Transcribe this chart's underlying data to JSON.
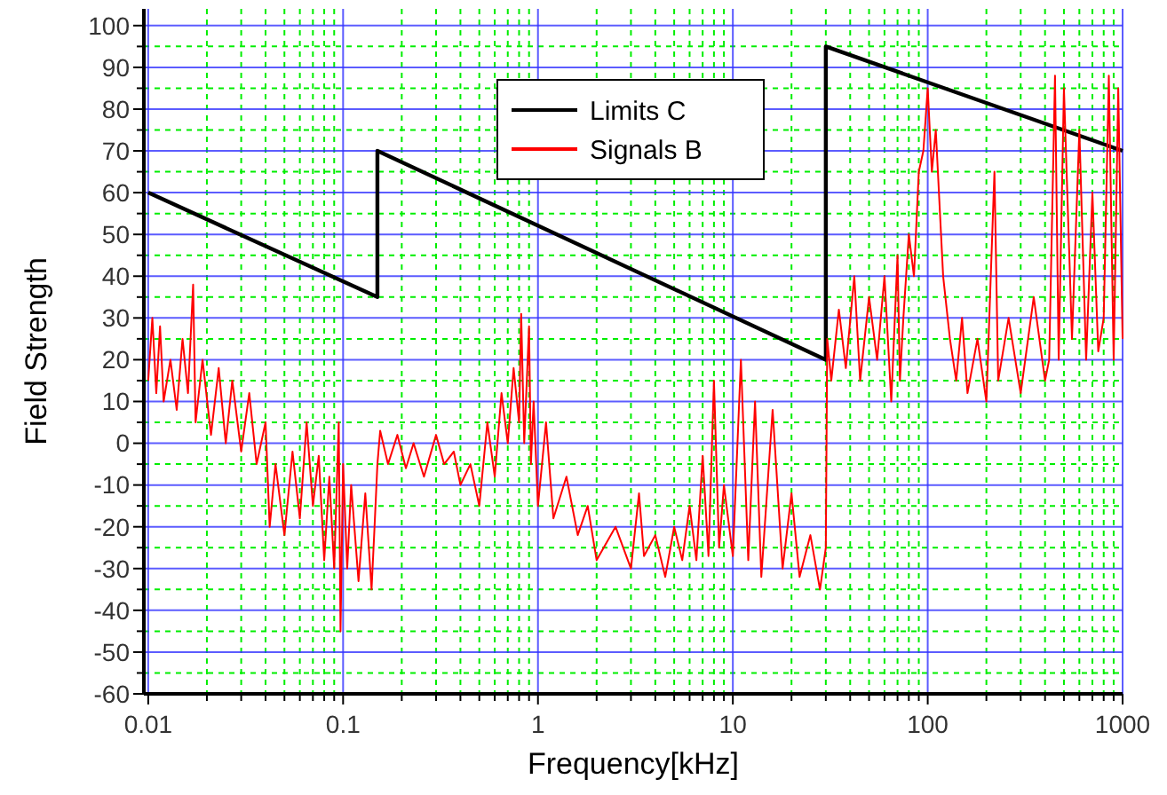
{
  "chart_data": {
    "type": "line",
    "xlabel": "Frequency[kHz]",
    "ylabel": "Field Strength",
    "log": "x",
    "xlim": [
      0.0095,
      1000
    ],
    "xticks": [
      0.01,
      {
        "value": 0.02,
        "label": null
      },
      {
        "value": 0.03,
        "label": null
      },
      {
        "value": 0.04,
        "label": null
      },
      {
        "value": 0.05,
        "label": null
      },
      {
        "value": 0.06,
        "label": null
      },
      {
        "value": 0.07,
        "label": null
      },
      {
        "value": 0.08,
        "label": null
      },
      {
        "value": 0.09,
        "label": null
      },
      0.1,
      {
        "value": 0.2,
        "label": null
      },
      {
        "value": 0.3,
        "label": null
      },
      {
        "value": 0.4,
        "label": null
      },
      {
        "value": 0.5,
        "label": null
      },
      {
        "value": 0.6,
        "label": null
      },
      {
        "value": 0.7,
        "label": null
      },
      {
        "value": 0.8,
        "label": null
      },
      {
        "value": 0.9,
        "label": null
      },
      1,
      {
        "value": 2,
        "label": null
      },
      {
        "value": 3,
        "label": null
      },
      {
        "value": 4,
        "label": null
      },
      {
        "value": 5,
        "label": null
      },
      {
        "value": 6,
        "label": null
      },
      {
        "value": 7,
        "label": null
      },
      {
        "value": 8,
        "label": null
      },
      {
        "value": 9,
        "label": null
      },
      10,
      {
        "value": 20,
        "label": null
      },
      {
        "value": 30,
        "label": null
      },
      {
        "value": 40,
        "label": null
      },
      {
        "value": 50,
        "label": null
      },
      {
        "value": 60,
        "label": null
      },
      {
        "value": 70,
        "label": null
      },
      {
        "value": 80,
        "label": null
      },
      {
        "value": 90,
        "label": null
      },
      100,
      {
        "value": 200,
        "label": null
      },
      {
        "value": 300,
        "label": null
      },
      {
        "value": 400,
        "label": null
      },
      {
        "value": 500,
        "label": null
      },
      {
        "value": 600,
        "label": null
      },
      {
        "value": 700,
        "label": null
      },
      {
        "value": 800,
        "label": null
      },
      {
        "value": 900,
        "label": null
      },
      1000
    ],
    "ylim": [
      -60,
      104
    ],
    "yticks": [
      -60,
      {
        "value": -55,
        "label": null
      },
      -50,
      {
        "value": -45,
        "label": null
      },
      -40,
      {
        "value": -35,
        "label": null
      },
      -30,
      {
        "value": -25,
        "label": null
      },
      -20,
      {
        "value": -15,
        "label": null
      },
      -10,
      {
        "value": -5,
        "label": null
      },
      0,
      {
        "value": 5,
        "label": null
      },
      10,
      {
        "value": 15,
        "label": null
      },
      20,
      {
        "value": 25,
        "label": null
      },
      30,
      {
        "value": 35,
        "label": null
      },
      40,
      {
        "value": 45,
        "label": null
      },
      50,
      {
        "value": 55,
        "label": null
      },
      60,
      {
        "value": 65,
        "label": null
      },
      70,
      {
        "value": 75,
        "label": null
      },
      80,
      {
        "value": 85,
        "label": null
      },
      90,
      {
        "value": 95,
        "label": null
      },
      100
    ],
    "grid": true,
    "legend": "top",
    "line_style": "solid",
    "series": [
      {
        "name": "Limits C",
        "color": "#000000",
        "x": [
          0.01,
          0.15,
          0.15,
          30,
          30,
          1000
        ],
        "values": [
          60,
          35,
          70,
          20,
          95,
          70
        ]
      },
      {
        "name": "Signals B",
        "color": "#ff0000",
        "x": [
          0.01,
          0.0105,
          0.011,
          0.0115,
          0.012,
          0.013,
          0.014,
          0.015,
          0.016,
          0.017,
          0.0175,
          0.019,
          0.021,
          0.023,
          0.025,
          0.027,
          0.03,
          0.033,
          0.036,
          0.04,
          0.042,
          0.045,
          0.05,
          0.055,
          0.06,
          0.065,
          0.07,
          0.075,
          0.08,
          0.085,
          0.09,
          0.095,
          0.097,
          0.1,
          0.105,
          0.11,
          0.12,
          0.13,
          0.14,
          0.145,
          0.15,
          0.155,
          0.17,
          0.19,
          0.21,
          0.23,
          0.26,
          0.3,
          0.33,
          0.37,
          0.4,
          0.45,
          0.5,
          0.55,
          0.6,
          0.65,
          0.7,
          0.75,
          0.8,
          0.82,
          0.85,
          0.9,
          0.92,
          0.95,
          1,
          1.1,
          1.2,
          1.4,
          1.6,
          1.8,
          2,
          2.5,
          3,
          3.3,
          3.5,
          4,
          4.5,
          5,
          5.5,
          6,
          6.5,
          7,
          7.5,
          8,
          8.5,
          9,
          10,
          11,
          12,
          13,
          14,
          16,
          18,
          20,
          22,
          25,
          28,
          30,
          30.5,
          32,
          35,
          38,
          42,
          45,
          50,
          55,
          60,
          65,
          70,
          72,
          75,
          80,
          85,
          90,
          95,
          100,
          105,
          110,
          120,
          130,
          140,
          150,
          160,
          180,
          200,
          220,
          230,
          260,
          300,
          350,
          400,
          420,
          450,
          470,
          500,
          550,
          600,
          650,
          700,
          750,
          800,
          850,
          900,
          950,
          1000
        ],
        "values": [
          15,
          30,
          12,
          28,
          10,
          20,
          8,
          25,
          12,
          38,
          5,
          20,
          2,
          18,
          0,
          15,
          -2,
          12,
          -5,
          5,
          -20,
          -5,
          -22,
          -2,
          -18,
          5,
          -15,
          -3,
          -28,
          -8,
          -30,
          5,
          -45,
          -5,
          -30,
          -10,
          -33,
          -12,
          -35,
          -20,
          -5,
          3,
          -5,
          2,
          -6,
          0,
          -8,
          2,
          -5,
          -2,
          -10,
          -5,
          -15,
          5,
          -8,
          12,
          0,
          18,
          5,
          31,
          0,
          28,
          -5,
          10,
          -15,
          5,
          -18,
          -8,
          -22,
          -15,
          -28,
          -20,
          -30,
          -12,
          -27,
          -22,
          -32,
          -20,
          -28,
          -15,
          -28,
          -3,
          -27,
          15,
          -25,
          -10,
          -27,
          20,
          -28,
          10,
          -32,
          8,
          -30,
          -12,
          -32,
          -22,
          -35,
          -25,
          25,
          15,
          32,
          18,
          40,
          15,
          35,
          20,
          40,
          10,
          45,
          15,
          30,
          50,
          40,
          65,
          70,
          85,
          65,
          75,
          40,
          25,
          15,
          30,
          12,
          25,
          10,
          65,
          15,
          30,
          12,
          35,
          15,
          20,
          88,
          20,
          85,
          25,
          75,
          20,
          60,
          22,
          30,
          88,
          20,
          85,
          25
        ]
      }
    ]
  }
}
